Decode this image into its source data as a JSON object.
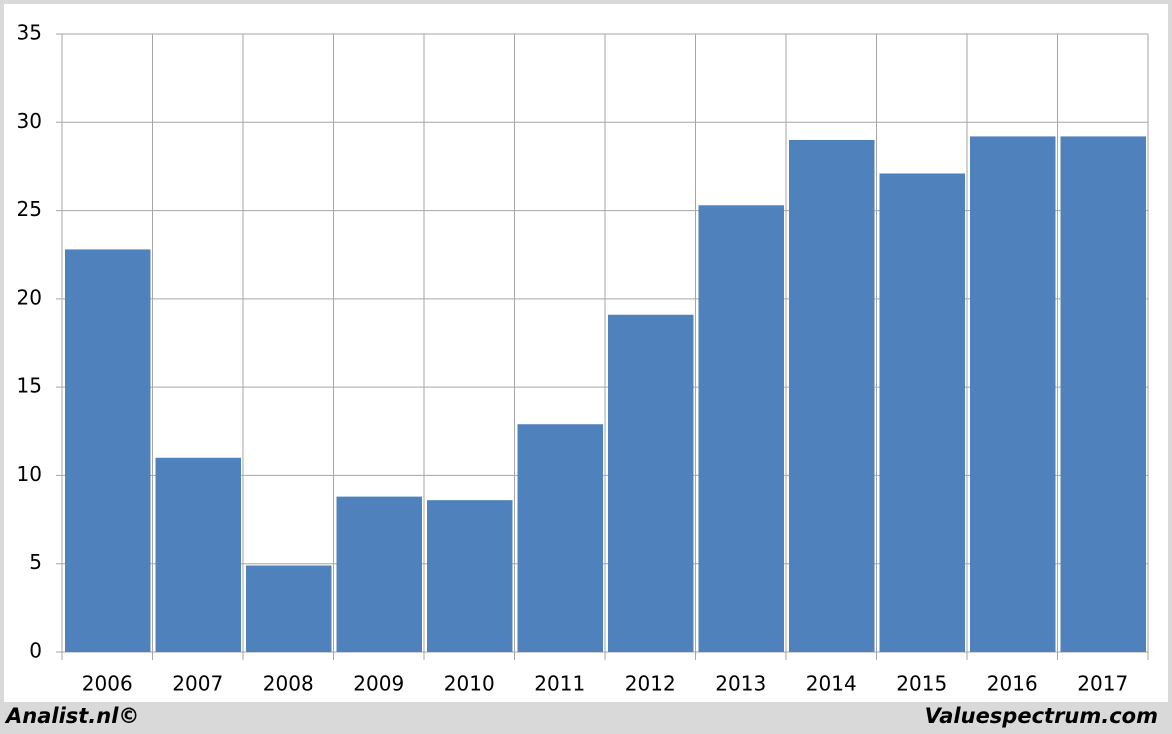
{
  "chart_data": {
    "type": "bar",
    "categories": [
      "2006",
      "2007",
      "2008",
      "2009",
      "2010",
      "2011",
      "2012",
      "2013",
      "2014",
      "2015",
      "2016",
      "2017"
    ],
    "values": [
      22.8,
      11.0,
      4.9,
      8.8,
      8.6,
      12.9,
      19.1,
      25.3,
      29.0,
      27.1,
      29.2,
      29.2
    ],
    "color": "#4f81bd",
    "ylim": [
      0,
      35
    ],
    "yticks": [
      0,
      5,
      10,
      15,
      20,
      25,
      30,
      35
    ],
    "grid": true,
    "footer_left": "Analist.nl©",
    "footer_right": "Valuespectrum.com"
  }
}
